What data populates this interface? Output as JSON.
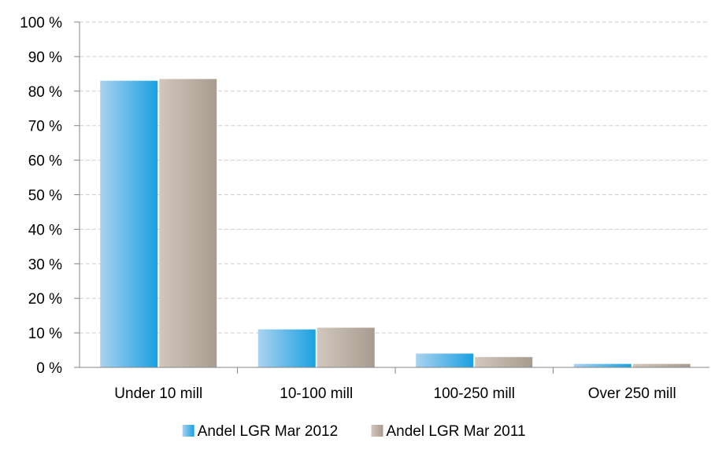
{
  "chart_data": {
    "type": "bar",
    "categories": [
      "Under 10 mill",
      "10-100 mill",
      "100-250 mill",
      "Over 250 mill"
    ],
    "series": [
      {
        "name": "Andel LGR Mar 2012",
        "values": [
          83,
          11,
          4,
          1
        ],
        "color_light": "#a9d3ef",
        "color_dark": "#1aa0e2"
      },
      {
        "name": "Andel LGR Mar 2011",
        "values": [
          83.5,
          11.5,
          3,
          1
        ],
        "color_light": "#d2c7bc",
        "color_dark": "#a89c90"
      }
    ],
    "ylim": [
      0,
      100
    ],
    "yticks": [
      0,
      10,
      20,
      30,
      40,
      50,
      60,
      70,
      80,
      90,
      100
    ],
    "ytick_suffix": " %",
    "grid": true,
    "grid_color": "#cfcfcf",
    "legend_position": "bottom",
    "title": "",
    "xlabel": "",
    "ylabel": ""
  }
}
